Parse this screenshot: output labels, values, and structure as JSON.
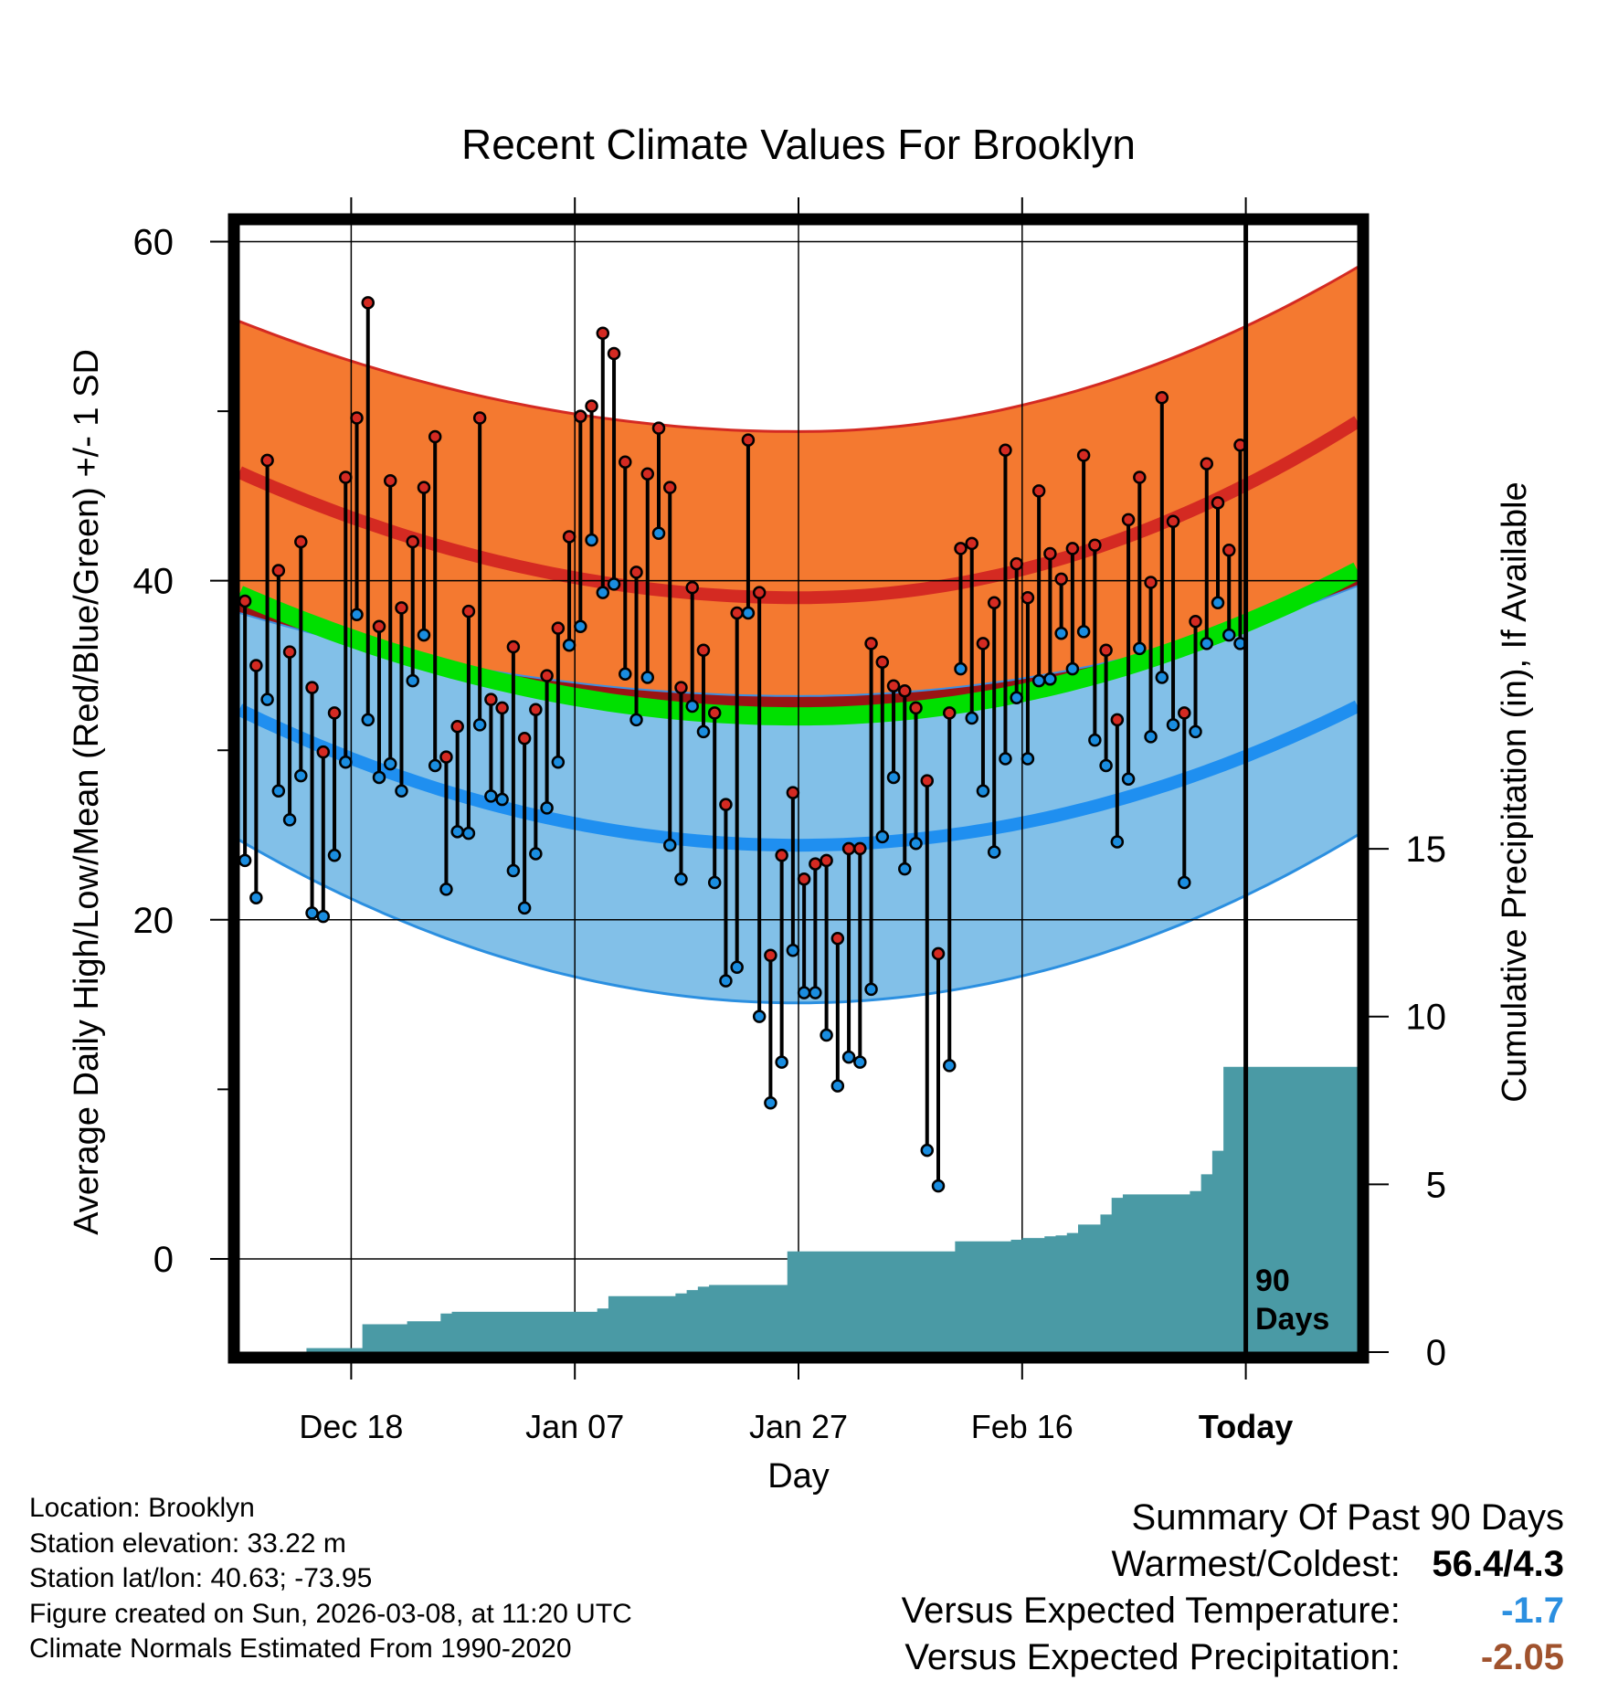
{
  "chart_data": {
    "type": "line",
    "title": "Recent Climate Values For Brooklyn",
    "xlabel": "Day",
    "ylabel": "Average Daily High/Low/Mean (Red/Blue/Green) +/- 1 SD",
    "y2label": "Cumulative Precipitation (in), If Available",
    "ylim": [
      -5.5,
      61
    ],
    "y2lim": [
      0,
      33.6
    ],
    "xlim": [
      0,
      100
    ],
    "today_index": 90,
    "today_label": "90 Days",
    "y_ticks": [
      0,
      20,
      40,
      60
    ],
    "y2_ticks": [
      0,
      5,
      10,
      15
    ],
    "x_ticks": [
      {
        "day": 10,
        "label": "Dec 18"
      },
      {
        "day": 30,
        "label": "Jan 07"
      },
      {
        "day": 50,
        "label": "Jan 27"
      },
      {
        "day": 70,
        "label": "Feb 16"
      },
      {
        "day": 90,
        "label": "Today"
      }
    ],
    "normal_high": {
      "start": 46.4,
      "min": 39.0,
      "end": 49.4,
      "min_day": 50
    },
    "normal_high_upper": {
      "start": 55.3,
      "min": 48.8,
      "end": 58.5,
      "min_day": 50
    },
    "normal_mean": {
      "start": 39.2,
      "min": 32.0,
      "end": 40.6,
      "min_day": 50
    },
    "normal_low": {
      "start": 32.4,
      "min": 24.4,
      "end": 32.6,
      "min_day": 50
    },
    "normal_low_lower": {
      "start": 24.7,
      "min": 15.1,
      "end": 25.0,
      "min_day": 50
    },
    "normal_low_upper": {
      "start": 38.1,
      "min": 33.2,
      "end": 39.7,
      "min_day": 50
    },
    "series": [
      {
        "name": "Daily High",
        "color": "#d42a22",
        "values": [
          38.8,
          35.0,
          47.1,
          40.6,
          35.8,
          42.3,
          33.7,
          29.9,
          32.2,
          46.1,
          49.6,
          56.4,
          37.3,
          45.9,
          38.4,
          42.3,
          45.5,
          48.5,
          29.6,
          31.4,
          38.2,
          49.6,
          33.0,
          32.5,
          36.1,
          30.7,
          32.4,
          34.4,
          37.2,
          42.6,
          49.7,
          50.3,
          54.6,
          53.4,
          47.0,
          40.5,
          46.3,
          49.0,
          45.5,
          33.7,
          39.6,
          35.9,
          32.2,
          26.8,
          38.1,
          48.3,
          39.3,
          17.9,
          23.8,
          27.5,
          22.4,
          23.3,
          23.5,
          18.9,
          24.2,
          24.2,
          36.3,
          35.2,
          33.8,
          33.5,
          32.5,
          28.2,
          18.0,
          32.2,
          41.9,
          42.2,
          36.3,
          38.7,
          47.7,
          41.0,
          39.0,
          45.3,
          41.6,
          40.1,
          41.9,
          47.4,
          42.1,
          35.9,
          31.8,
          43.6,
          46.1,
          39.9,
          50.8,
          43.5,
          32.2,
          37.6,
          46.9,
          44.6,
          41.8,
          48.0
        ]
      },
      {
        "name": "Daily Low",
        "color": "#1a8de0",
        "values": [
          23.5,
          21.3,
          33.0,
          27.6,
          25.9,
          28.5,
          20.4,
          20.2,
          23.8,
          29.3,
          38.0,
          31.8,
          28.4,
          29.2,
          27.6,
          34.1,
          36.8,
          29.1,
          21.8,
          25.2,
          25.1,
          31.5,
          27.3,
          27.1,
          22.9,
          20.7,
          23.9,
          26.6,
          29.3,
          36.2,
          37.3,
          42.4,
          39.3,
          39.8,
          34.5,
          31.8,
          34.3,
          42.8,
          24.4,
          22.4,
          32.6,
          31.1,
          22.2,
          16.4,
          17.2,
          38.1,
          14.3,
          9.2,
          11.6,
          18.2,
          15.7,
          15.7,
          13.2,
          10.2,
          11.9,
          11.6,
          15.9,
          24.9,
          28.4,
          23.0,
          24.5,
          6.4,
          4.3,
          11.4,
          34.8,
          31.9,
          27.6,
          24.0,
          29.5,
          33.1,
          29.5,
          34.1,
          34.2,
          36.9,
          34.8,
          37.0,
          30.6,
          29.1,
          24.6,
          28.3,
          36.0,
          30.8,
          34.3,
          31.5,
          22.2,
          31.1,
          36.3,
          38.7,
          36.8,
          36.3
        ]
      }
    ],
    "precipitation": {
      "name": "Cumulative Precipitation",
      "color": "#4a9aa5",
      "values": [
        0,
        0,
        0,
        0,
        0,
        0,
        0.12,
        0.12,
        0.12,
        0.12,
        0.12,
        0.83,
        0.83,
        0.83,
        0.83,
        0.92,
        0.92,
        0.92,
        1.15,
        1.2,
        1.2,
        1.2,
        1.2,
        1.2,
        1.2,
        1.2,
        1.2,
        1.2,
        1.2,
        1.2,
        1.2,
        1.2,
        1.3,
        1.67,
        1.67,
        1.67,
        1.67,
        1.67,
        1.67,
        1.75,
        1.85,
        1.95,
        2.0,
        2.0,
        2.0,
        2.0,
        2.0,
        2.0,
        2.0,
        3.0,
        3.0,
        3.0,
        3.0,
        3.0,
        3.0,
        3.0,
        3.0,
        3.0,
        3.0,
        3.0,
        3.0,
        3.0,
        3.0,
        3.0,
        3.3,
        3.3,
        3.3,
        3.3,
        3.3,
        3.35,
        3.4,
        3.4,
        3.45,
        3.48,
        3.55,
        3.8,
        3.8,
        4.1,
        4.6,
        4.7,
        4.7,
        4.7,
        4.7,
        4.7,
        4.7,
        4.8,
        5.3,
        6.0,
        8.5,
        8.5
      ]
    }
  },
  "info": {
    "location": "Location: Brooklyn",
    "elevation": "Station elevation: 33.22 m",
    "latlon": "Station lat/lon: 40.63; -73.95",
    "created": "Figure created on Sun, 2026-03-08, at 11:20 UTC",
    "normals": "Climate Normals Estimated From 1990-2020"
  },
  "summary": {
    "title": "Summary Of Past 90 Days",
    "warmest_label": "Warmest/Coldest:",
    "warmest_value": "56.4/4.3",
    "temp_label": "Versus Expected Temperature:",
    "temp_value": "-1.7",
    "temp_color": "#2b8fe0",
    "precip_label": "Versus Expected Precipitation:",
    "precip_value": "-2.05",
    "precip_color": "#a0522d"
  }
}
